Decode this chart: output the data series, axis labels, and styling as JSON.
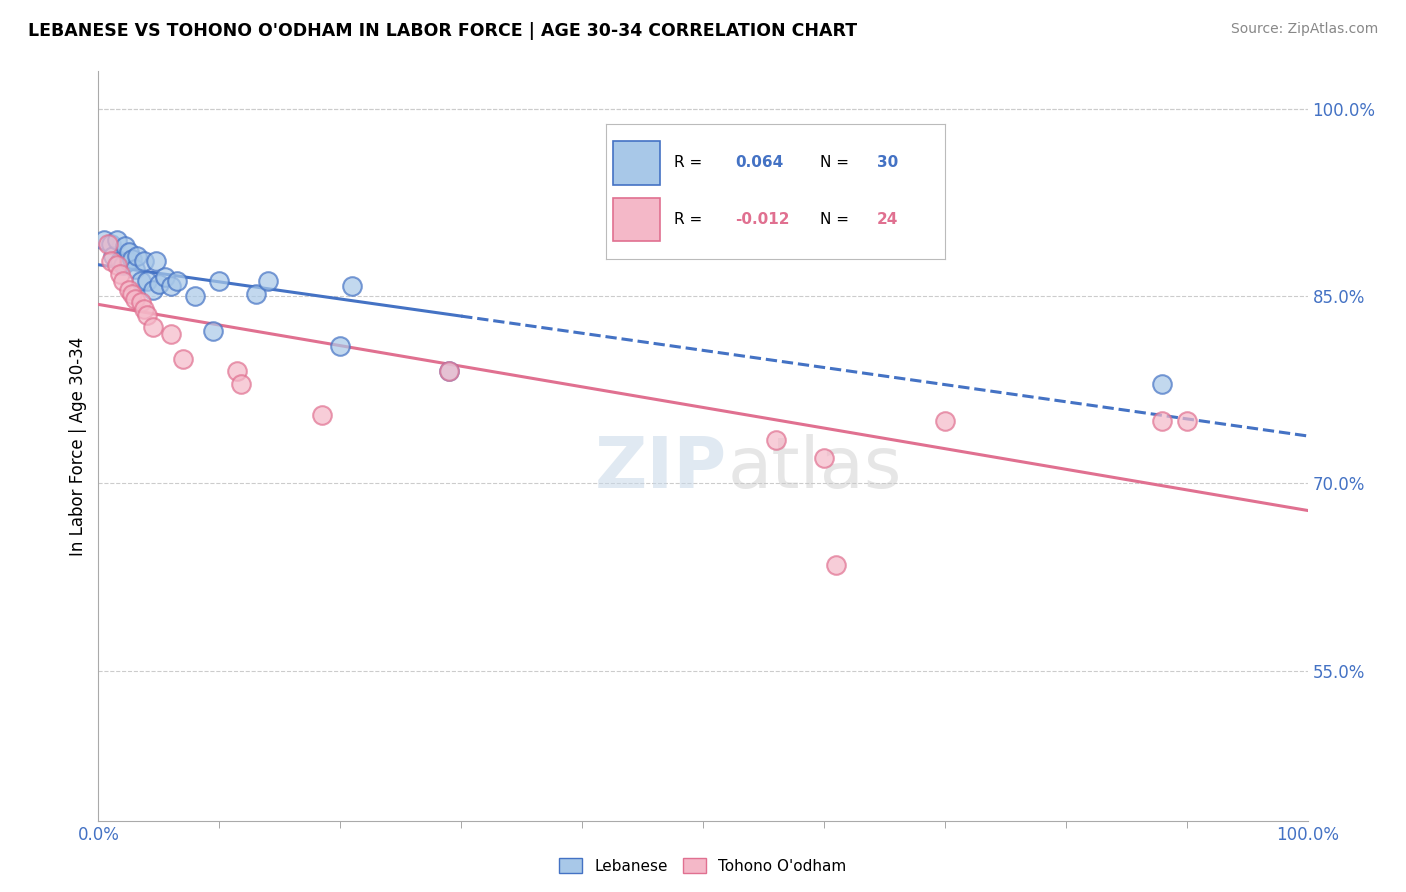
{
  "title": "LEBANESE VS TOHONO O'ODHAM IN LABOR FORCE | AGE 30-34 CORRELATION CHART",
  "source": "Source: ZipAtlas.com",
  "ylabel": "In Labor Force | Age 30-34",
  "xlim": [
    0.0,
    1.0
  ],
  "ylim": [
    0.43,
    1.03
  ],
  "y_tick_labels": [
    "55.0%",
    "70.0%",
    "85.0%",
    "100.0%"
  ],
  "y_tick_positions": [
    0.55,
    0.7,
    0.85,
    1.0
  ],
  "blue_color": "#a8c8e8",
  "pink_color": "#f4b8c8",
  "trend_blue_color": "#4472c4",
  "trend_pink_color": "#e07090",
  "grid_color": "#cccccc",
  "background_color": "#ffffff",
  "watermark_text": "ZIPatlas",
  "blue_r": "0.064",
  "blue_n": "30",
  "pink_r": "-0.012",
  "pink_n": "24",
  "blue_scatter_x": [
    0.005,
    0.01,
    0.012,
    0.015,
    0.018,
    0.02,
    0.022,
    0.025,
    0.025,
    0.028,
    0.03,
    0.032,
    0.035,
    0.038,
    0.04,
    0.045,
    0.048,
    0.05,
    0.055,
    0.06,
    0.065,
    0.08,
    0.095,
    0.1,
    0.13,
    0.14,
    0.2,
    0.21,
    0.29,
    0.88
  ],
  "blue_scatter_y": [
    0.895,
    0.892,
    0.882,
    0.895,
    0.878,
    0.875,
    0.89,
    0.878,
    0.885,
    0.88,
    0.872,
    0.882,
    0.862,
    0.878,
    0.862,
    0.855,
    0.878,
    0.86,
    0.865,
    0.858,
    0.862,
    0.85,
    0.822,
    0.862,
    0.852,
    0.862,
    0.81,
    0.858,
    0.79,
    0.78
  ],
  "pink_scatter_x": [
    0.008,
    0.01,
    0.015,
    0.018,
    0.02,
    0.025,
    0.028,
    0.03,
    0.035,
    0.038,
    0.04,
    0.045,
    0.06,
    0.07,
    0.115,
    0.118,
    0.185,
    0.29,
    0.56,
    0.6,
    0.61,
    0.7,
    0.88,
    0.9
  ],
  "pink_scatter_y": [
    0.892,
    0.878,
    0.875,
    0.868,
    0.862,
    0.855,
    0.852,
    0.848,
    0.845,
    0.84,
    0.835,
    0.825,
    0.82,
    0.8,
    0.79,
    0.78,
    0.755,
    0.79,
    0.735,
    0.72,
    0.635,
    0.75,
    0.75,
    0.75
  ],
  "figsize": [
    14.06,
    8.92
  ],
  "dpi": 100
}
